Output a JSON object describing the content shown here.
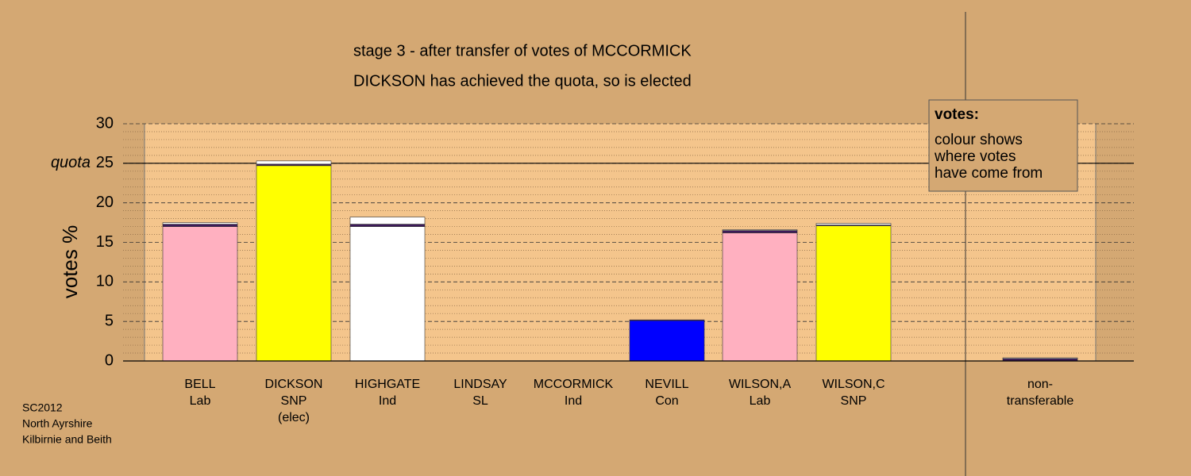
{
  "chart_data": {
    "type": "stacked_bar",
    "title": "stage 3 - after transfer of votes of MCCORMICK",
    "subtitle": "DICKSON has achieved the quota, so is elected",
    "ylabel": "votes %",
    "categories": [
      [
        "BELL",
        "Lab"
      ],
      [
        "DICKSON",
        "SNP",
        "(elec)"
      ],
      [
        "HIGHGATE",
        "Ind"
      ],
      [
        "LINDSAY",
        "SL"
      ],
      [
        "MCCORMICK",
        "Ind"
      ],
      [
        "NEVILL",
        "Con"
      ],
      [
        "WILSON,A",
        "Lab"
      ],
      [
        "WILSON,C",
        "SNP"
      ],
      [
        "non-",
        "transferable"
      ]
    ],
    "series": [
      {
        "colors": [
          "#ffb0c0",
          "#ffff00",
          "#ffffff",
          "#800080",
          "#c0c0c0",
          "#0000ff",
          "#ffb0c0",
          "#ffff00",
          "#3d1a5a"
        ],
        "values": [
          17.0,
          24.7,
          17.0,
          0,
          0,
          5.1,
          16.2,
          17.1,
          0
        ]
      },
      {
        "color": "#3d1a5a",
        "values": [
          0.3,
          0.2,
          0.3,
          0,
          0,
          0.1,
          0.3,
          0.1,
          0.3
        ]
      },
      {
        "color": "#ffffff",
        "values": [
          0.2,
          0.4,
          0.9,
          0,
          0,
          0,
          0.1,
          0.2,
          0.1
        ]
      }
    ],
    "ylim": [
      0,
      30
    ],
    "yticks": [
      0,
      5,
      10,
      15,
      20,
      25,
      30
    ],
    "minor_yticks": [
      1,
      2,
      3,
      4,
      6,
      7,
      8,
      9,
      11,
      12,
      13,
      14,
      16,
      17,
      18,
      19,
      21,
      22,
      23,
      24,
      26,
      27,
      28,
      29
    ],
    "quota": {
      "value": 25,
      "label": "quota"
    },
    "legend": {
      "title": "votes:",
      "lines": [
        "colour shows",
        "where votes",
        "have come from"
      ]
    },
    "footer": [
      "SC2012",
      "North Ayrshire",
      "Kilbirnie and Beith"
    ],
    "grid": true
  }
}
